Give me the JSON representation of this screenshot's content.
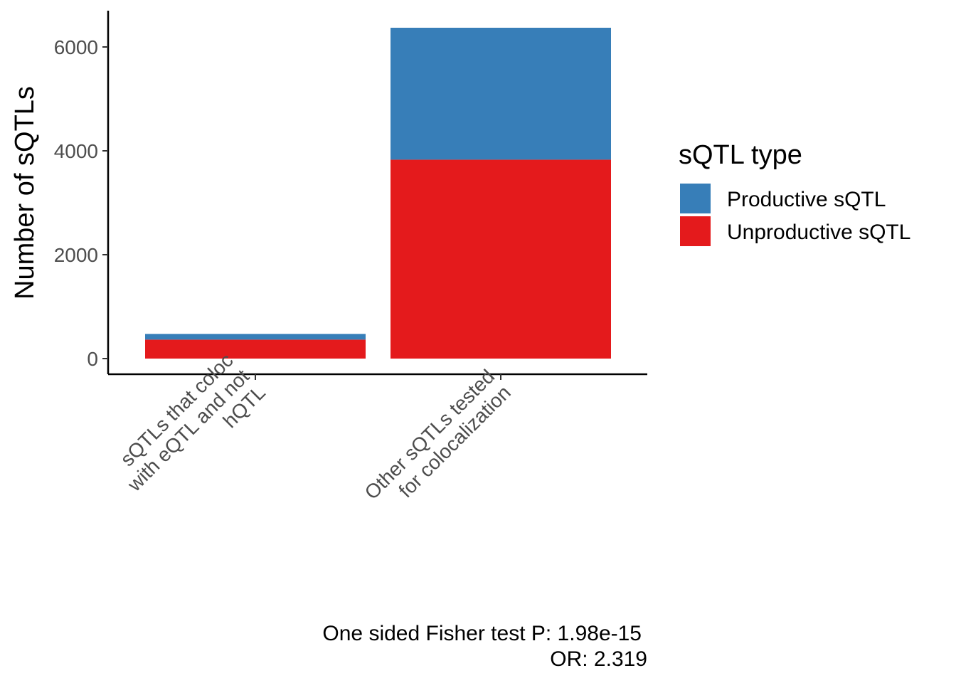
{
  "chart_data": {
    "type": "bar",
    "stacked": true,
    "categories": [
      [
        "sQTLs that coloc",
        "with eQTL and not",
        "hQTL"
      ],
      [
        "Other sQTLs tested",
        "for colocalization"
      ]
    ],
    "series": [
      {
        "name": "Unproductive sQTL",
        "color": "#E41A1C",
        "values": [
          365,
          3830
        ]
      },
      {
        "name": "Productive sQTL",
        "color": "#377EB8",
        "values": [
          110,
          2540
        ]
      }
    ],
    "ylabel": "Number of sQTLs",
    "xlabel": "",
    "ylim": [
      -300,
      6700
    ],
    "yticks": [
      0,
      2000,
      4000,
      6000
    ],
    "legend": {
      "title": "sQTL type",
      "placement": "right",
      "items": [
        {
          "label": "Productive sQTL",
          "color": "#377EB8"
        },
        {
          "label": "Unproductive sQTL",
          "color": "#E41A1C"
        }
      ]
    },
    "caption": [
      "One sided Fisher test P: 1.98e-15",
      "OR: 2.319"
    ],
    "grid": false
  }
}
